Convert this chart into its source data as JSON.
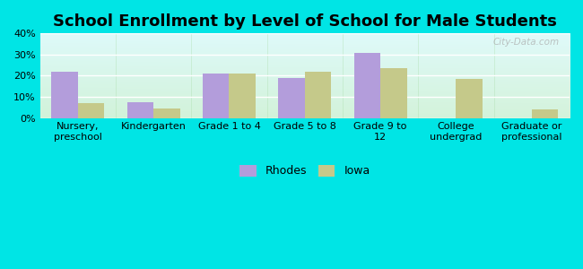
{
  "title": "School Enrollment by Level of School for Male Students",
  "categories": [
    "Nursery,\npreschool",
    "Kindergarten",
    "Grade 1 to 4",
    "Grade 5 to 8",
    "Grade 9 to\n12",
    "College\nundergrad",
    "Graduate or\nprofessional"
  ],
  "rhodes_values": [
    22,
    7.5,
    21,
    19,
    31,
    0,
    0
  ],
  "iowa_values": [
    7,
    4.5,
    21,
    22,
    23.5,
    18.5,
    4
  ],
  "rhodes_color": "#b39ddb",
  "iowa_color": "#c5c98a",
  "ylim": [
    0,
    40
  ],
  "yticks": [
    0,
    10,
    20,
    30,
    40
  ],
  "ytick_labels": [
    "0%",
    "10%",
    "20%",
    "30%",
    "40%"
  ],
  "bar_width": 0.35,
  "background_outer": "#00e5e5",
  "legend_labels": [
    "Rhodes",
    "Iowa"
  ],
  "title_fontsize": 13,
  "tick_fontsize": 8,
  "legend_fontsize": 9,
  "watermark_text": "City-Data.com",
  "grid_color": "#dddddd"
}
